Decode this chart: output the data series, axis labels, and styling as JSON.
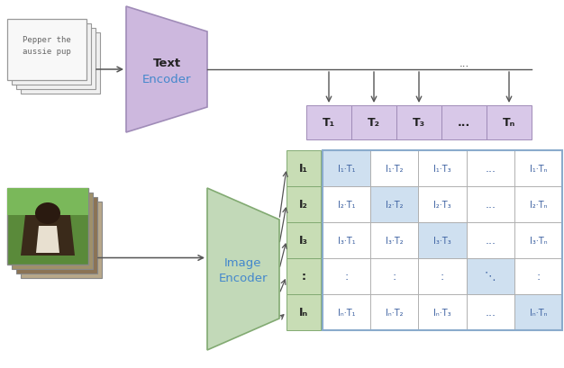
{
  "fig_width": 6.26,
  "fig_height": 4.1,
  "dpi": 100,
  "bg_color": "#ffffff",
  "text_encoder_color": "#cdb8de",
  "text_encoder_edge": "#a08cb8",
  "image_encoder_color": "#c2d9b8",
  "image_encoder_edge": "#82aa72",
  "text_box_color": "#d8c8e8",
  "text_box_edge": "#a08cb8",
  "image_vec_color": "#c8ddb5",
  "image_vec_edge": "#82aa72",
  "matrix_bg": "#ffffff",
  "matrix_diag_color": "#cfe0f0",
  "matrix_border": "#aaaaaa",
  "matrix_border_outer": "#8aabcc",
  "matrix_text_color": "#3a5fa0",
  "arrow_color": "#555555",
  "doc_box_color": "#f8f8f8",
  "doc_box_edge": "#999999",
  "doc_text": "Pepper the\naussie pup",
  "text_encoder_label_bold": "Text",
  "text_encoder_label_normal": "Encoder",
  "image_encoder_label_bold": "Image",
  "image_encoder_label_normal": "Encoder",
  "T_labels": [
    "T₁",
    "T₂",
    "T₃",
    "...",
    "Tₙ"
  ],
  "I_labels": [
    "I₁",
    "I₂",
    "I₃",
    ":",
    "Iₙ"
  ],
  "mat_row0": [
    "I₁·T₁",
    "I₁·T₂",
    "I₁·T₃",
    "...",
    "I₁·Tₙ"
  ],
  "mat_row1": [
    "I₂·T₁",
    "I₂·T₂",
    "I₂·T₃",
    "...",
    "I₂·Tₙ"
  ],
  "mat_row2": [
    "I₃·T₁",
    "I₃·T₂",
    "I₃·T₃",
    "...",
    "I₃·Tₙ"
  ],
  "mat_row3": [
    ":",
    ":",
    ":",
    "⋱",
    ":"
  ],
  "mat_row4": [
    "Iₙ·T₁",
    "Iₙ·T₂",
    "Iₙ·T₃",
    "...",
    "Iₙ·Tₙ"
  ]
}
